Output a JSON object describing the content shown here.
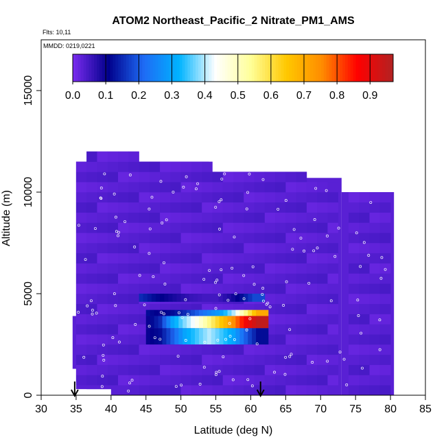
{
  "chart_data": {
    "type": "heatmap",
    "title": "ATOM2 Northeast_Pacific_2 Nitrate_PM1_AMS",
    "flights_note": "Flts: 10,11",
    "dates_note": "MMDD: 0219,0221",
    "xlabel": "Latitude (deg N)",
    "ylabel": "Altitude (m)",
    "xlim": [
      30,
      85
    ],
    "ylim": [
      0,
      17500
    ],
    "x_ticks": [
      "30",
      "35",
      "40",
      "45",
      "50",
      "55",
      "60",
      "65",
      "70",
      "75",
      "80",
      "85"
    ],
    "y_ticks": [
      "0",
      "5000",
      "10000",
      "15000"
    ],
    "colorbar": {
      "range": [
        0,
        0.97
      ],
      "tick_values": [
        0.0,
        0.1,
        0.2,
        0.3,
        0.4,
        0.5,
        0.6,
        0.7,
        0.8,
        0.9
      ],
      "tick_labels": [
        "0.0",
        "0.1",
        "0.2",
        "0.3",
        "0.4",
        "0.5",
        "0.6",
        "0.7",
        "0.8",
        "0.9"
      ],
      "colors": [
        "#7b2cf0",
        "#00008b",
        "#1e6bf5",
        "#00b4ff",
        "#ffffff",
        "#ffff99",
        "#ffc800",
        "#ff8c00",
        "#ff0000",
        "#b22222"
      ]
    },
    "background_value": 0.03,
    "coverage": [
      {
        "x0": 35,
        "x1": 40,
        "y0": 300,
        "y1": 11500
      },
      {
        "x0": 36.5,
        "x1": 44,
        "y0": 300,
        "y1": 12000
      },
      {
        "x0": 40,
        "x1": 54,
        "y0": 0,
        "y1": 11500
      },
      {
        "x0": 54,
        "x1": 68,
        "y0": 0,
        "y1": 11000
      },
      {
        "x0": 68,
        "x1": 73,
        "y0": 0,
        "y1": 10700
      },
      {
        "x0": 73,
        "x1": 80.5,
        "y0": 0,
        "y1": 10000
      },
      {
        "x0": 34.5,
        "x1": 36,
        "y0": 1300,
        "y1": 3900
      }
    ],
    "enhanced_bands": [
      {
        "x0": 44,
        "x1": 62,
        "y0": 4600,
        "y1": 5000,
        "profile": [
          0.15,
          0.12,
          0.1,
          0.08,
          0.06,
          0.05,
          0.05,
          0.08,
          0.12,
          0.18
        ]
      },
      {
        "x0": 45,
        "x1": 62.5,
        "y0": 3900,
        "y1": 4200,
        "profile": [
          0.12,
          0.1,
          0.12,
          0.15,
          0.2,
          0.25,
          0.3,
          0.4,
          0.55,
          0.7
        ]
      },
      {
        "x0": 45,
        "x1": 62.5,
        "y0": 3300,
        "y1": 3900,
        "profile": [
          0.1,
          0.15,
          0.3,
          0.38,
          0.45,
          0.55,
          0.65,
          0.75,
          0.88,
          0.95
        ]
      },
      {
        "x0": 45,
        "x1": 62.5,
        "y0": 2500,
        "y1": 3300,
        "profile": [
          0.1,
          0.12,
          0.2,
          0.3,
          0.35,
          0.4,
          0.35,
          0.3,
          0.2,
          0.12
        ]
      }
    ],
    "arrows_x": [
      34.8,
      61.4
    ]
  }
}
